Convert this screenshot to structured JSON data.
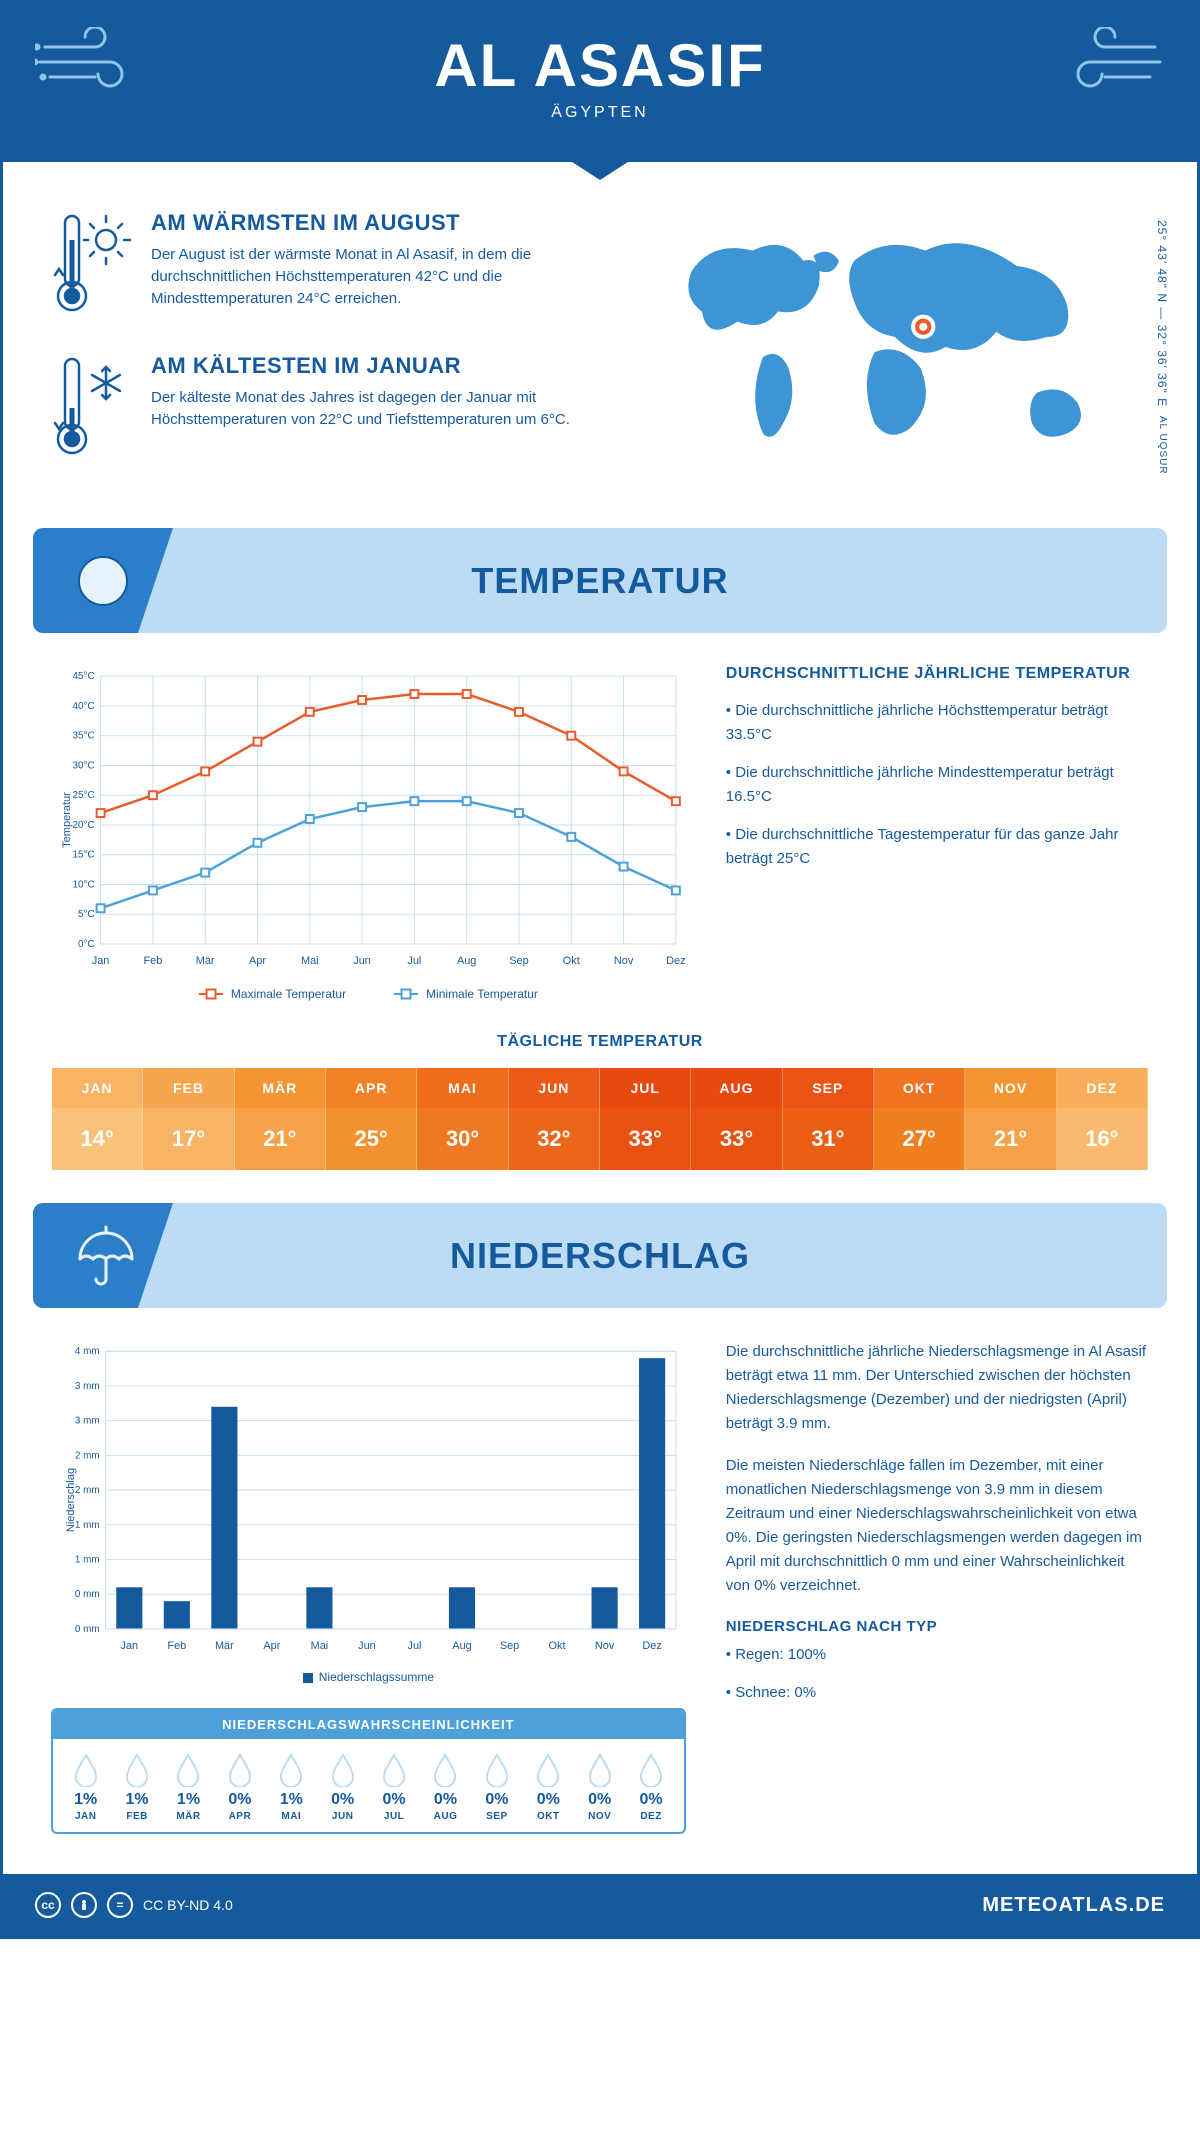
{
  "header": {
    "title": "AL ASASIF",
    "subtitle": "ÄGYPTEN"
  },
  "coords": "25° 43' 48\" N — 32° 36' 36\" E",
  "coords_sub": "AL UQSUR",
  "facts": {
    "warm": {
      "title": "AM WÄRMSTEN IM AUGUST",
      "text": "Der August ist der wärmste Monat in Al Asasif, in dem die durchschnittlichen Höchsttemperaturen 42°C und die Mindesttemperaturen 24°C erreichen."
    },
    "cold": {
      "title": "AM KÄLTESTEN IM JANUAR",
      "text": "Der kälteste Monat des Jahres ist dagegen der Januar mit Höchsttemperaturen von 22°C und Tiefsttemperaturen um 6°C."
    }
  },
  "temp_section": {
    "title": "TEMPERATUR",
    "chart": {
      "type": "line",
      "months": [
        "Jan",
        "Feb",
        "Mär",
        "Apr",
        "Mai",
        "Jun",
        "Jul",
        "Aug",
        "Sep",
        "Okt",
        "Nov",
        "Dez"
      ],
      "max": [
        22,
        25,
        29,
        34,
        39,
        41,
        42,
        42,
        39,
        35,
        29,
        24
      ],
      "min": [
        6,
        9,
        12,
        17,
        21,
        23,
        24,
        24,
        22,
        18,
        13,
        9
      ],
      "max_color": "#e85c2b",
      "min_color": "#4da0d8",
      "ylim": [
        0,
        45
      ],
      "ytick_step": 5,
      "y_unit": "°C",
      "y_label": "Temperatur",
      "grid_color": "#c8deee",
      "legend_max": "Maximale Temperatur",
      "legend_min": "Minimale Temperatur"
    },
    "info": {
      "title": "DURCHSCHNITTLICHE JÄHRLICHE TEMPERATUR",
      "b1": "• Die durchschnittliche jährliche Höchsttemperatur beträgt 33.5°C",
      "b2": "• Die durchschnittliche jährliche Mindesttemperatur beträgt 16.5°C",
      "b3": "• Die durchschnittliche Tagestemperatur für das ganze Jahr beträgt 25°C"
    },
    "daily": {
      "title": "TÄGLICHE TEMPERATUR",
      "months": [
        "JAN",
        "FEB",
        "MÄR",
        "APR",
        "MAI",
        "JUN",
        "JUL",
        "AUG",
        "SEP",
        "OKT",
        "NOV",
        "DEZ"
      ],
      "values": [
        "14°",
        "17°",
        "21°",
        "25°",
        "30°",
        "32°",
        "33°",
        "33°",
        "31°",
        "27°",
        "21°",
        "16°"
      ],
      "head_colors": [
        "#f9b365",
        "#f7a64d",
        "#f49433",
        "#f18227",
        "#ee6e1d",
        "#eb5b15",
        "#e8490f",
        "#e8490f",
        "#ea5513",
        "#ef7320",
        "#f49433",
        "#f8ad58"
      ],
      "cell_colors": [
        "#fac178",
        "#f9b365",
        "#f6a048",
        "#f3902f",
        "#ef7922",
        "#ec6518",
        "#e95110",
        "#e95110",
        "#eb5f15",
        "#f0801f",
        "#f6a048",
        "#f9ba6f"
      ]
    }
  },
  "precip_section": {
    "title": "NIEDERSCHLAG",
    "chart": {
      "type": "bar",
      "months": [
        "Jan",
        "Feb",
        "Mär",
        "Apr",
        "Mai",
        "Jun",
        "Jul",
        "Aug",
        "Sep",
        "Okt",
        "Nov",
        "Dez"
      ],
      "values": [
        0.6,
        0.4,
        3.2,
        0,
        0.6,
        0,
        0,
        0.6,
        0,
        0,
        0.6,
        3.9
      ],
      "bar_color": "#165a9e",
      "ylim": [
        0,
        4
      ],
      "yticks": [
        "0 mm",
        "0 mm",
        "1 mm",
        "1 mm",
        "2 mm",
        "2 mm",
        "3 mm",
        "3 mm",
        "4 mm"
      ],
      "y_label": "Niederschlag",
      "grid_color": "#c8deee",
      "legend": "Niederschlagssumme"
    },
    "prob": {
      "title": "NIEDERSCHLAGSWAHRSCHEINLICHKEIT",
      "months": [
        "JAN",
        "FEB",
        "MÄR",
        "APR",
        "MAI",
        "JUN",
        "JUL",
        "AUG",
        "SEP",
        "OKT",
        "NOV",
        "DEZ"
      ],
      "values": [
        "1%",
        "1%",
        "1%",
        "0%",
        "1%",
        "0%",
        "0%",
        "0%",
        "0%",
        "0%",
        "0%",
        "0%"
      ]
    },
    "info": {
      "p1": "Die durchschnittliche jährliche Niederschlagsmenge in Al Asasif beträgt etwa 11 mm. Der Unterschied zwischen der höchsten Niederschlagsmenge (Dezember) und der niedrigsten (April) beträgt 3.9 mm.",
      "p2": "Die meisten Niederschläge fallen im Dezember, mit einer monatlichen Niederschlagsmenge von 3.9 mm in diesem Zeitraum und einer Niederschlagswahrscheinlichkeit von etwa 0%. Die geringsten Niederschlagsmengen werden dagegen im April mit durchschnittlich 0 mm und einer Wahrscheinlichkeit von 0% verzeichnet.",
      "type_title": "NIEDERSCHLAG NACH TYP",
      "t1": "• Regen: 100%",
      "t2": "• Schnee: 0%"
    }
  },
  "footer": {
    "license": "CC BY-ND 4.0",
    "brand": "METEOATLAS.DE"
  },
  "colors": {
    "primary": "#165a9e",
    "light": "#bcdcf5",
    "mid": "#4da0d8",
    "orange": "#e85c2b"
  }
}
